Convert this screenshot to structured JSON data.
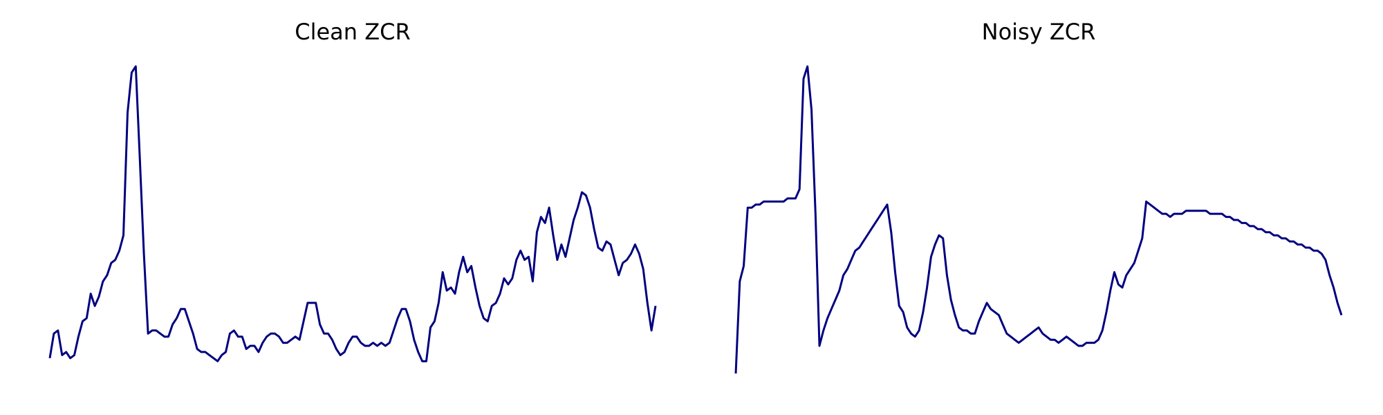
{
  "figure": {
    "background": "#ffffff",
    "line_color": "#000080"
  },
  "chart_data": [
    {
      "type": "line",
      "title": "Clean ZCR",
      "xlabel": "",
      "ylabel": "",
      "axes_visible": false,
      "grid": false,
      "ylim": [
        0,
        1
      ],
      "series": [
        {
          "values": [
            0.05,
            0.13,
            0.14,
            0.06,
            0.07,
            0.05,
            0.06,
            0.12,
            0.17,
            0.18,
            0.26,
            0.22,
            0.25,
            0.3,
            0.32,
            0.36,
            0.37,
            0.4,
            0.45,
            0.85,
            0.98,
            1.0,
            0.7,
            0.39,
            0.13,
            0.14,
            0.14,
            0.13,
            0.12,
            0.12,
            0.16,
            0.18,
            0.21,
            0.21,
            0.17,
            0.13,
            0.08,
            0.07,
            0.07,
            0.06,
            0.05,
            0.04,
            0.06,
            0.07,
            0.13,
            0.14,
            0.12,
            0.12,
            0.08,
            0.09,
            0.09,
            0.07,
            0.1,
            0.12,
            0.13,
            0.13,
            0.12,
            0.1,
            0.1,
            0.11,
            0.12,
            0.11,
            0.17,
            0.23,
            0.23,
            0.23,
            0.16,
            0.13,
            0.13,
            0.11,
            0.08,
            0.06,
            0.07,
            0.1,
            0.12,
            0.12,
            0.1,
            0.09,
            0.09,
            0.1,
            0.09,
            0.1,
            0.09,
            0.1,
            0.14,
            0.18,
            0.21,
            0.21,
            0.17,
            0.11,
            0.07,
            0.04,
            0.04,
            0.15,
            0.17,
            0.23,
            0.33,
            0.27,
            0.28,
            0.26,
            0.33,
            0.38,
            0.33,
            0.35,
            0.28,
            0.22,
            0.18,
            0.17,
            0.22,
            0.23,
            0.26,
            0.31,
            0.29,
            0.31,
            0.37,
            0.4,
            0.37,
            0.38,
            0.3,
            0.46,
            0.51,
            0.49,
            0.54,
            0.45,
            0.37,
            0.42,
            0.38,
            0.44,
            0.5,
            0.54,
            0.59,
            0.58,
            0.54,
            0.47,
            0.41,
            0.4,
            0.43,
            0.42,
            0.37,
            0.32,
            0.36,
            0.37,
            0.39,
            0.42,
            0.39,
            0.34,
            0.23,
            0.14,
            0.22
          ]
        }
      ]
    },
    {
      "type": "line",
      "title": "Noisy ZCR",
      "xlabel": "",
      "ylabel": "",
      "axes_visible": false,
      "grid": false,
      "ylim": [
        0,
        1
      ],
      "series": [
        {
          "values": [
            0.0,
            0.3,
            0.35,
            0.54,
            0.54,
            0.55,
            0.55,
            0.56,
            0.56,
            0.56,
            0.56,
            0.56,
            0.56,
            0.57,
            0.57,
            0.57,
            0.6,
            0.96,
            1.0,
            0.86,
            0.52,
            0.09,
            0.14,
            0.18,
            0.21,
            0.24,
            0.27,
            0.32,
            0.34,
            0.37,
            0.4,
            0.41,
            0.43,
            0.45,
            0.47,
            0.49,
            0.51,
            0.53,
            0.55,
            0.46,
            0.33,
            0.22,
            0.2,
            0.15,
            0.13,
            0.12,
            0.14,
            0.2,
            0.28,
            0.38,
            0.42,
            0.45,
            0.44,
            0.32,
            0.24,
            0.19,
            0.15,
            0.14,
            0.14,
            0.13,
            0.13,
            0.17,
            0.2,
            0.23,
            0.21,
            0.2,
            0.19,
            0.16,
            0.13,
            0.12,
            0.11,
            0.1,
            0.11,
            0.12,
            0.13,
            0.14,
            0.15,
            0.13,
            0.12,
            0.11,
            0.11,
            0.1,
            0.11,
            0.12,
            0.11,
            0.1,
            0.09,
            0.09,
            0.1,
            0.1,
            0.1,
            0.11,
            0.14,
            0.2,
            0.27,
            0.33,
            0.29,
            0.28,
            0.32,
            0.34,
            0.36,
            0.4,
            0.44,
            0.56,
            0.55,
            0.54,
            0.53,
            0.52,
            0.52,
            0.51,
            0.52,
            0.52,
            0.52,
            0.53,
            0.53,
            0.53,
            0.53,
            0.53,
            0.53,
            0.52,
            0.52,
            0.52,
            0.52,
            0.51,
            0.51,
            0.5,
            0.5,
            0.49,
            0.49,
            0.48,
            0.48,
            0.47,
            0.47,
            0.46,
            0.46,
            0.45,
            0.45,
            0.44,
            0.44,
            0.43,
            0.43,
            0.42,
            0.42,
            0.41,
            0.41,
            0.4,
            0.4,
            0.39,
            0.37,
            0.32,
            0.28,
            0.23,
            0.19
          ]
        }
      ]
    }
  ]
}
